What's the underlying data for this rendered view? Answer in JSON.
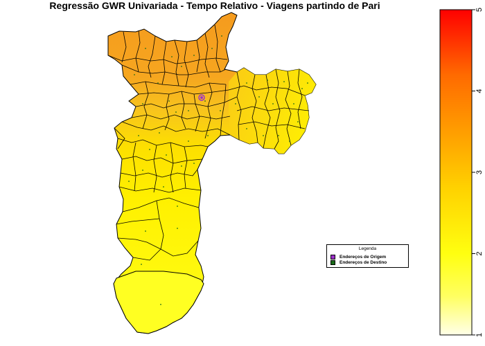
{
  "title": "Regressão GWR Univariada - Tempo Relativo - Viagens partindo de Pari",
  "legend": {
    "title": "Legenda",
    "items": [
      {
        "label": "Endereços de Origem",
        "color": "#9b30c8"
      },
      {
        "label": "Endereços de Destino",
        "color": "#1a6b1a"
      }
    ]
  },
  "colorbar": {
    "min": 1,
    "max": 5,
    "ticks": [
      "1",
      "2",
      "3",
      "4",
      "5"
    ],
    "colors": [
      "#ffffe8",
      "#ffff30",
      "#ffd000",
      "#ff9000",
      "#ff5000",
      "#ff0000"
    ]
  },
  "map": {
    "fill_colors": {
      "north": "#f59b1e",
      "north_center": "#f5a823",
      "center": "#f7c820",
      "east": "#ffe500",
      "south": "#fff200",
      "far_south": "#ffff20"
    },
    "origin_color": "#9b30c8",
    "destination_color": "#1a6b1a"
  }
}
